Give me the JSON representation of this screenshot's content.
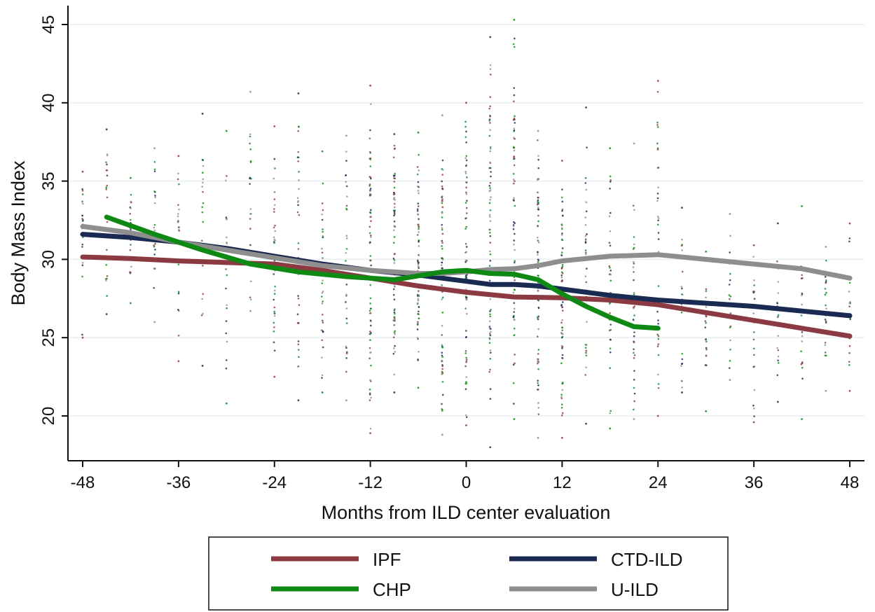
{
  "chart_data": {
    "type": "line",
    "xlabel": "Months from ILD center evaluation",
    "ylabel": "Body Mass Index",
    "xlim": [
      -50,
      50
    ],
    "ylim": [
      17.5,
      46.2
    ],
    "xticks": [
      -48,
      -36,
      -24,
      -12,
      0,
      12,
      24,
      36,
      48
    ],
    "xtick_labels": [
      "-48",
      "-36",
      "-24",
      "-12",
      "0",
      "12",
      "24",
      "36",
      "48"
    ],
    "yticks": [
      20,
      25,
      30,
      35,
      40,
      45
    ],
    "ytick_labels": [
      "20",
      "25",
      "30",
      "35",
      "40",
      "45"
    ],
    "grid": "horizontal",
    "legend_position": "bottom",
    "series": [
      {
        "name": "IPF",
        "color": "#8c3a42",
        "x": [
          -48,
          -42,
          -36,
          -30,
          -24,
          -18,
          -12,
          -6,
          0,
          6,
          12,
          18,
          24,
          30,
          36,
          42,
          48
        ],
        "y": [
          30.15,
          30.05,
          29.9,
          29.8,
          29.7,
          29.3,
          28.8,
          28.3,
          27.9,
          27.6,
          27.55,
          27.4,
          27.1,
          26.6,
          26.1,
          25.6,
          25.1
        ]
      },
      {
        "name": "CTD-ILD",
        "color": "#1b2a52",
        "x": [
          -48,
          -42,
          -36,
          -30,
          -24,
          -18,
          -12,
          -6,
          0,
          3,
          6,
          9,
          12,
          18,
          24,
          30,
          36,
          42,
          48
        ],
        "y": [
          31.6,
          31.4,
          31.1,
          30.7,
          30.2,
          29.7,
          29.3,
          29.0,
          28.6,
          28.4,
          28.4,
          28.3,
          28.1,
          27.7,
          27.4,
          27.2,
          27.0,
          26.7,
          26.4
        ]
      },
      {
        "name": "CHP",
        "color": "#0e8a14",
        "x": [
          -45,
          -39,
          -33,
          -27,
          -21,
          -15,
          -9,
          -3,
          0,
          3,
          6,
          9,
          12,
          15,
          18,
          21,
          24
        ],
        "y": [
          32.7,
          31.6,
          30.6,
          29.7,
          29.2,
          28.9,
          28.7,
          29.2,
          29.3,
          29.1,
          29.05,
          28.7,
          27.8,
          27.0,
          26.3,
          25.7,
          25.6
        ]
      },
      {
        "name": "U-ILD",
        "color": "#8e8e8e",
        "x": [
          -48,
          -42,
          -36,
          -30,
          -24,
          -18,
          -12,
          -6,
          -3,
          0,
          3,
          6,
          9,
          12,
          18,
          24,
          30,
          36,
          42,
          48
        ],
        "y": [
          32.1,
          31.7,
          31.1,
          30.6,
          30.1,
          29.6,
          29.3,
          29.1,
          29.1,
          29.2,
          29.35,
          29.4,
          29.6,
          29.9,
          30.2,
          30.3,
          30.0,
          29.7,
          29.4,
          28.8
        ]
      }
    ],
    "scatter_points": {
      "description_colors": [
        "#8c3a42",
        "#1b2a52",
        "#0e8a14",
        "#8e8e8e"
      ],
      "x_positions": [
        -48,
        -45,
        -42,
        -39,
        -36,
        -33,
        -30,
        -27,
        -24,
        -21,
        -18,
        -15,
        -12,
        -9,
        -6,
        -3,
        0,
        3,
        6,
        9,
        12,
        15,
        18,
        21,
        24,
        27,
        30,
        33,
        36,
        39,
        42,
        45,
        48
      ],
      "y_min": [
        25.0,
        26.5,
        27.2,
        26.0,
        23.5,
        23.2,
        20.8,
        26.7,
        22.5,
        21.0,
        21.5,
        21.0,
        18.9,
        21.5,
        21.8,
        18.8,
        19.4,
        18.0,
        19.8,
        18.6,
        18.6,
        19.5,
        19.2,
        19.8,
        20.0,
        21.5,
        20.3,
        22.3,
        19.6,
        20.9,
        19.8,
        21.6,
        21.6
      ],
      "y_max": [
        35.6,
        38.3,
        35.2,
        37.1,
        36.6,
        39.3,
        38.2,
        40.7,
        38.5,
        40.6,
        36.9,
        37.9,
        41.1,
        38.0,
        38.1,
        39.2,
        40.0,
        44.2,
        45.3,
        38.2,
        36.3,
        39.7,
        37.1,
        37.4,
        41.4,
        33.3,
        30.5,
        32.9,
        30.9,
        32.3,
        33.4,
        30.8,
        32.3
      ]
    }
  },
  "legend": {
    "items": [
      {
        "label": "IPF",
        "color": "#8c3a42"
      },
      {
        "label": "CTD-ILD",
        "color": "#1b2a52"
      },
      {
        "label": "CHP",
        "color": "#0e8a14"
      },
      {
        "label": "U-ILD",
        "color": "#8e8e8e"
      }
    ]
  }
}
